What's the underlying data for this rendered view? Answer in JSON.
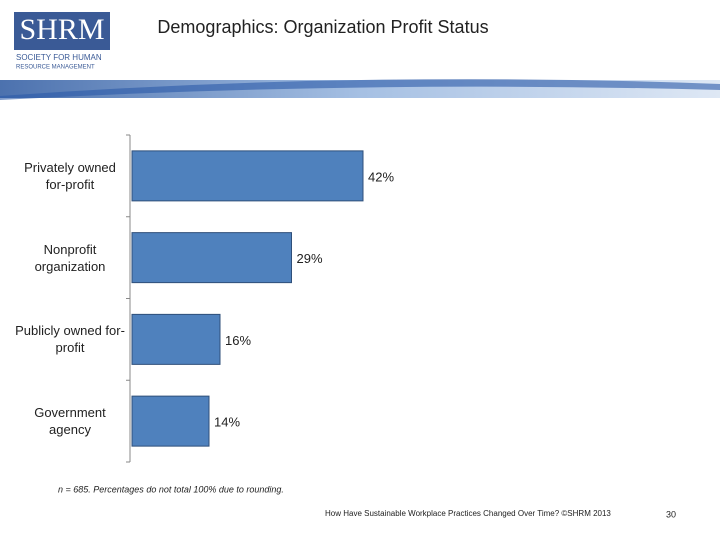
{
  "logo": {
    "name": "SHRM",
    "line1": "SOCIETY FOR HUMAN",
    "line2": "RESOURCE MANAGEMENT"
  },
  "chart_data": {
    "type": "bar",
    "orientation": "horizontal",
    "title": "Demographics: Organization Profit Status",
    "categories": [
      "Privately owned for-profit",
      "Nonprofit organization",
      "Publicly owned for-profit",
      "Government agency"
    ],
    "values": [
      42,
      29,
      16,
      14
    ],
    "value_labels": [
      "42%",
      "29%",
      "16%",
      "14%"
    ],
    "color": "#4f81bd",
    "xlim": [
      0,
      100
    ],
    "note": "n = 685. Percentages do not total 100% due to rounding."
  },
  "footer": {
    "source": "How Have Sustainable Workplace Practices Changed Over Time? ©SHRM 2013",
    "page": "30"
  }
}
